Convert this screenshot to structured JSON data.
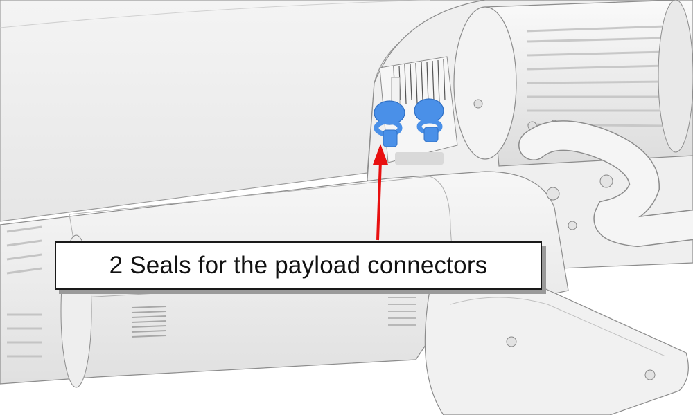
{
  "callout": {
    "text": "2 Seals for the payload connectors"
  },
  "illustration": {
    "subject": "robot arm with payload connector seals",
    "seal_count": 2,
    "highlight_color": "#4a90e8",
    "arrow_color": "#e81010",
    "body_color": "#eeeeee",
    "outline_color": "#8c8c8c"
  }
}
